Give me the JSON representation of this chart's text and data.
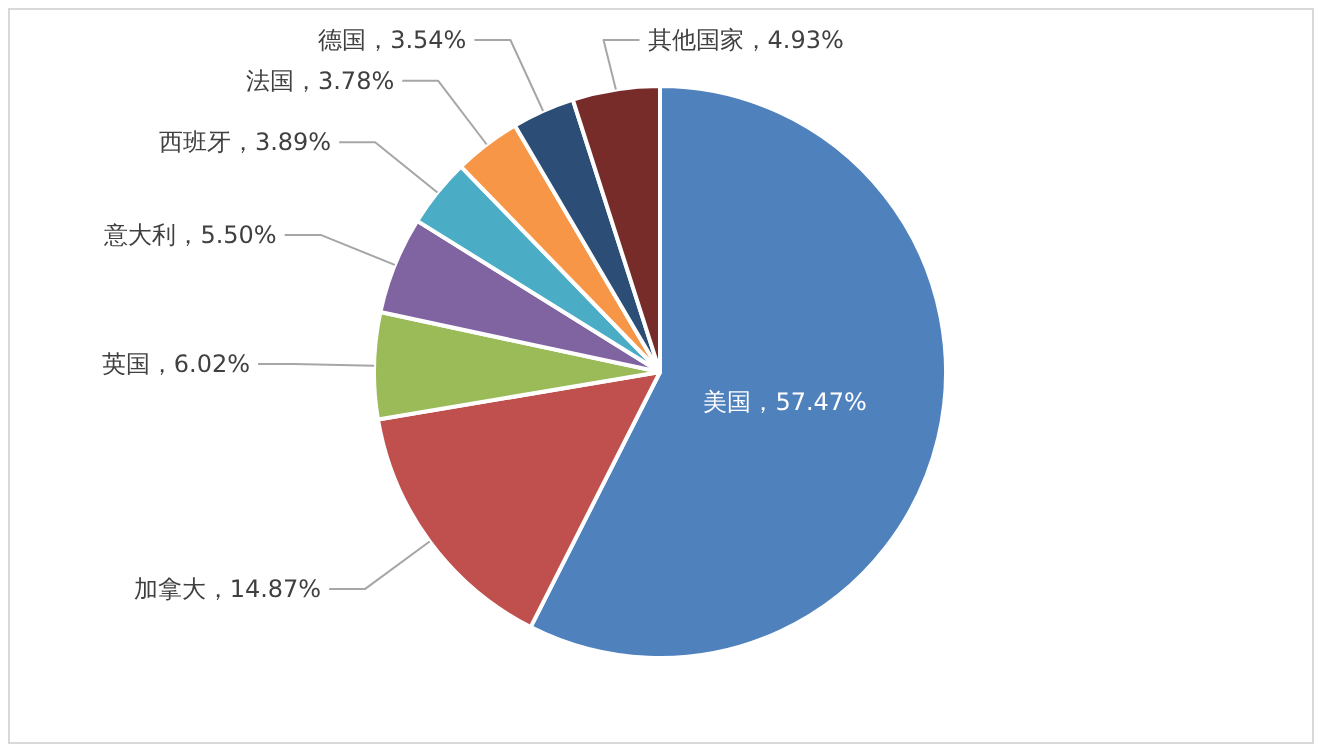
{
  "chart_data": {
    "type": "pie",
    "categories": [
      "美国",
      "加拿大",
      "英国",
      "意大利",
      "西班牙",
      "法国",
      "德国",
      "其他国家"
    ],
    "values": [
      57.47,
      14.87,
      6.02,
      5.5,
      3.89,
      3.78,
      3.54,
      4.93
    ],
    "colors": [
      "#4f81bd",
      "#c0504d",
      "#9bbb59",
      "#8064a2",
      "#4bacc6",
      "#f79646",
      "#2c4d75",
      "#772c2a"
    ],
    "value_labels": [
      "，57.47%",
      "，14.87%",
      "，6.02%",
      "，5.50%",
      "，3.89%",
      "，3.78%",
      "，3.54%",
      "，4.93%"
    ]
  }
}
